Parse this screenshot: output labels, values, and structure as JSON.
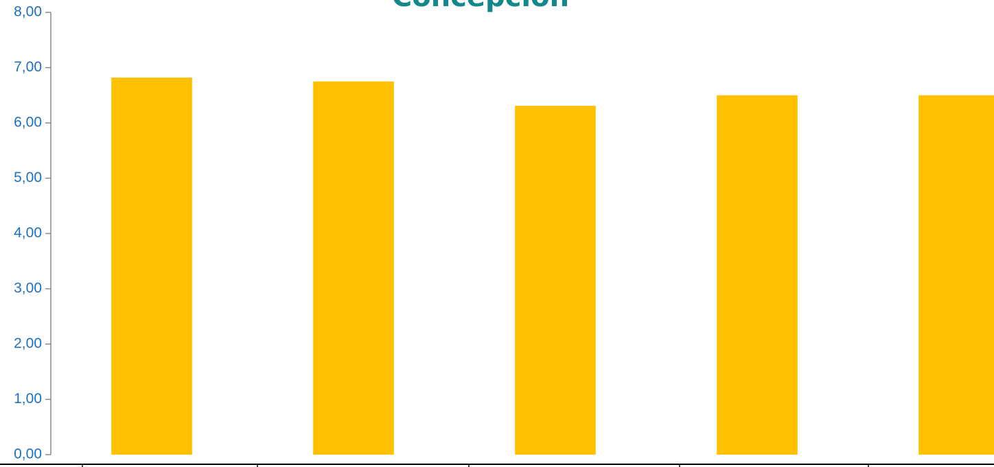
{
  "chart_data": {
    "type": "bar",
    "title": "Concepción",
    "categories": [
      null,
      null,
      null,
      null,
      null
    ],
    "values": [
      6.82,
      6.75,
      6.31,
      6.5,
      6.5
    ],
    "color": "#ffc000",
    "ylim": [
      0,
      8
    ],
    "yticks": [
      {
        "value": 0,
        "label": "0,00"
      },
      {
        "value": 1,
        "label": "1,00"
      },
      {
        "value": 2,
        "label": "2,00"
      },
      {
        "value": 3,
        "label": "3,00"
      },
      {
        "value": 4,
        "label": "4,00"
      },
      {
        "value": 5,
        "label": "5,00"
      },
      {
        "value": 6,
        "label": "6,00"
      },
      {
        "value": 7,
        "label": "7,00"
      },
      {
        "value": 8,
        "label": "8,00"
      }
    ],
    "grid": false
  }
}
